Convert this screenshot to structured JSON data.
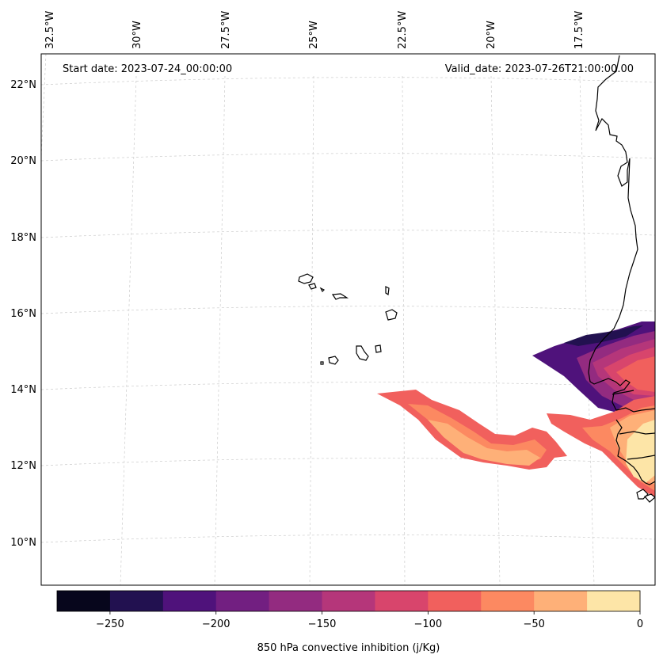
{
  "header": {
    "start_date": "Start date: 2023-07-24_00:00:00",
    "valid_date": "Valid_date: 2023-07-26T21:00:00.00"
  },
  "axes": {
    "lon_ticks": [
      "32.5°W",
      "30°W",
      "27.5°W",
      "25°W",
      "22.5°W",
      "20°W",
      "17.5°W"
    ],
    "lat_ticks": [
      "22°N",
      "20°N",
      "18°N",
      "16°N",
      "14°N",
      "12°N",
      "10°N"
    ]
  },
  "colorbar": {
    "label": "850 hPa convective inhibition (j/Kg)",
    "tick_labels": [
      "−250",
      "−200",
      "−150",
      "−100",
      "−50",
      "0"
    ],
    "levels": [
      -275,
      -250,
      -225,
      -200,
      -175,
      -150,
      -125,
      -100,
      -75,
      -50,
      -25,
      0
    ],
    "colors": [
      "#07061c",
      "#221150",
      "#4f127b",
      "#721f81",
      "#932b80",
      "#b5367a",
      "#d8456c",
      "#f1605d",
      "#fc8961",
      "#feb078",
      "#fde5a7"
    ]
  },
  "colors": {
    "coastline": "#000000",
    "grid": "#cccccc",
    "frame": "#000000"
  }
}
